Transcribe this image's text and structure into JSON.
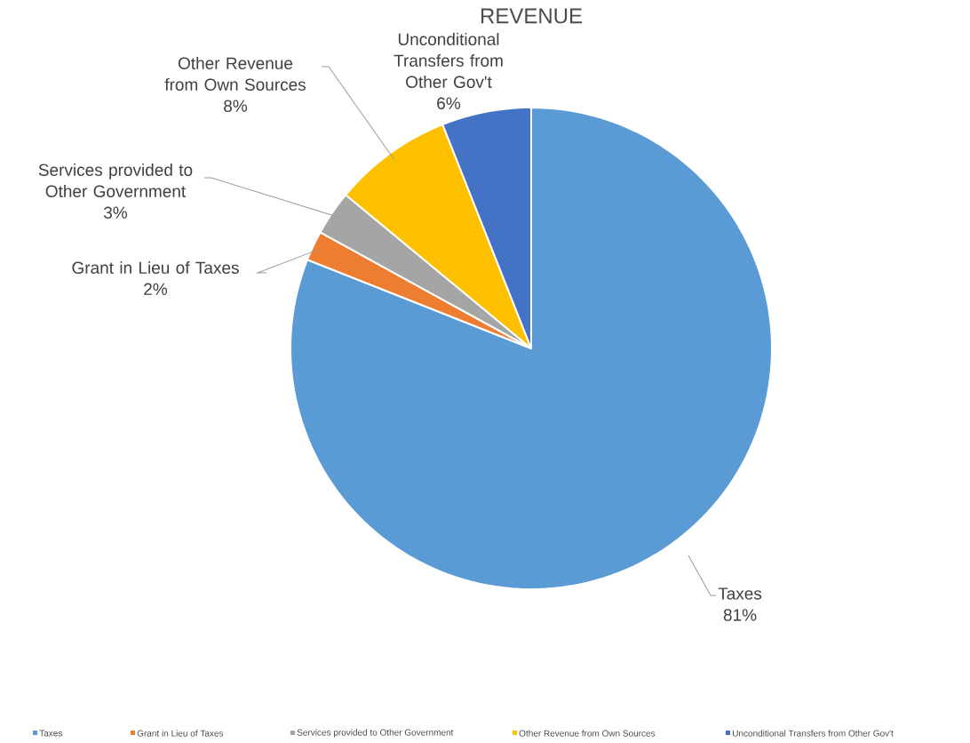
{
  "chart_data": {
    "type": "pie",
    "title": "REVENUE",
    "categories": [
      "Taxes",
      "Grant in Lieu of Taxes",
      "Services provided to Other Government",
      "Other Revenue from Own Sources",
      "Unconditional Transfers from Other Gov't"
    ],
    "values": [
      81,
      2,
      3,
      8,
      6
    ],
    "value_labels": [
      "81%",
      "2%",
      "3%",
      "8%",
      "6%"
    ],
    "colors": [
      "#5b9bd5",
      "#ed7d31",
      "#a5a5a5",
      "#ffc000",
      "#4472c4"
    ],
    "legend": "bottom"
  }
}
